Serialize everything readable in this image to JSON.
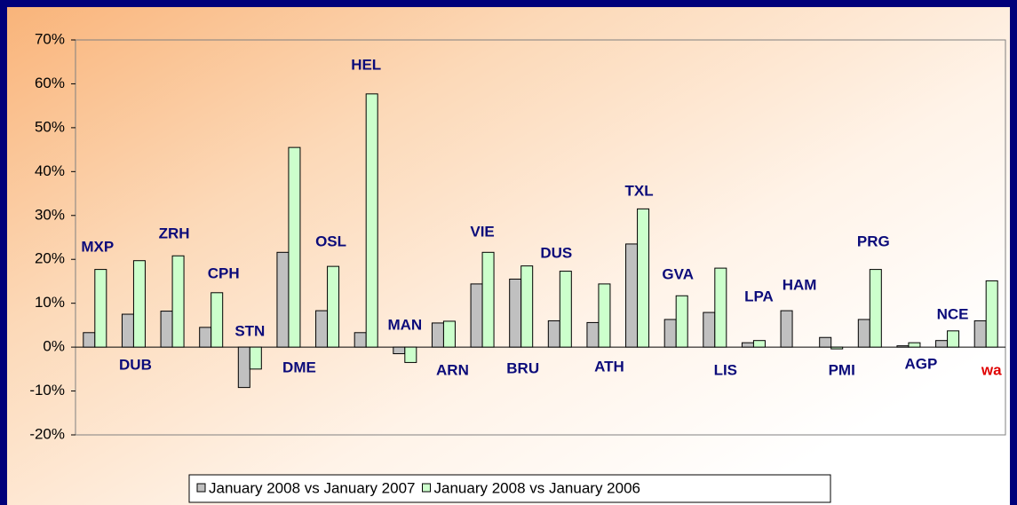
{
  "chart_data": {
    "type": "bar",
    "categories": [
      "MXP",
      "DUB",
      "ZRH",
      "CPH",
      "STN",
      "DME",
      "OSL",
      "HEL",
      "MAN",
      "ARN",
      "VIE",
      "BRU",
      "DUS",
      "ATH",
      "TXL",
      "GVA",
      "LIS",
      "LPA",
      "HAM",
      "PMI",
      "PRG",
      "AGP",
      "NCE",
      "wa"
    ],
    "series": [
      {
        "name": "January 2008 vs January 2007",
        "color": "#c0c0c0",
        "values": [
          3.3,
          7.5,
          8.2,
          4.5,
          -9.2,
          21.6,
          8.3,
          3.3,
          -1.5,
          5.5,
          14.4,
          15.5,
          6,
          5.6,
          23.5,
          6.3,
          7.9,
          1,
          8.3,
          2.2,
          6.3,
          0.3,
          1.5,
          6
        ]
      },
      {
        "name": "January 2008 vs January 2006",
        "color": "#ccffcc",
        "values": [
          17.7,
          19.7,
          20.8,
          12.4,
          -5,
          45.5,
          18.4,
          57.7,
          -3.5,
          5.9,
          21.6,
          18.5,
          17.3,
          14.4,
          31.5,
          11.7,
          18,
          1.5,
          null,
          -0.4,
          17.7,
          1,
          3.7,
          15.1
        ]
      }
    ],
    "ylim": [
      -20,
      70
    ],
    "yticks": [
      {
        "value": -20,
        "label": "-20%"
      },
      {
        "value": -10,
        "label": "-10%"
      },
      {
        "value": 0,
        "label": "0%"
      },
      {
        "value": 10,
        "label": "10%"
      },
      {
        "value": 20,
        "label": "20%"
      },
      {
        "value": 30,
        "label": "30%"
      },
      {
        "value": 40,
        "label": "40%"
      },
      {
        "value": 50,
        "label": "50%"
      },
      {
        "value": 60,
        "label": "60%"
      },
      {
        "value": 70,
        "label": "70%"
      }
    ],
    "legend": "bottom"
  }
}
